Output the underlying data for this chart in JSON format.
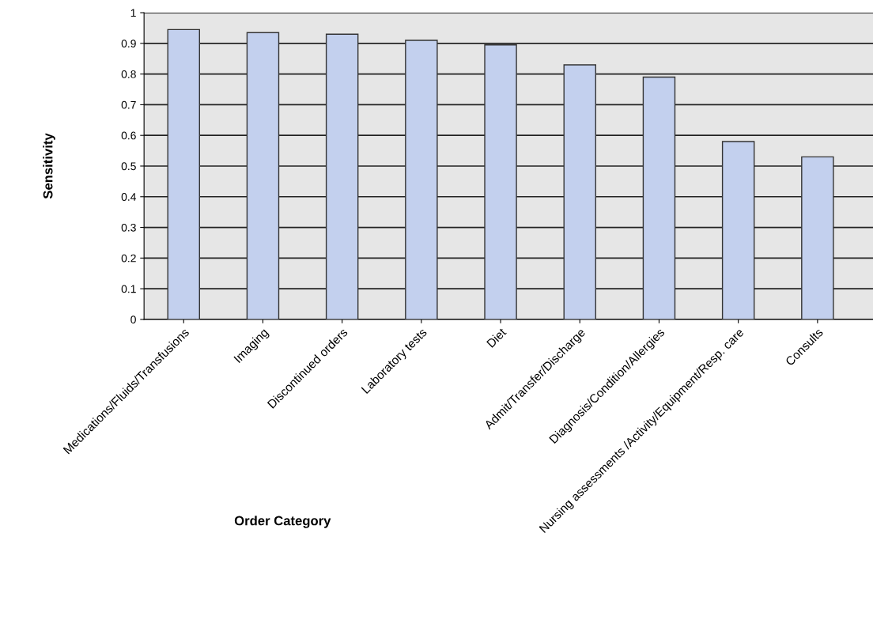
{
  "chart_data": {
    "type": "bar",
    "xlabel": "Order Category",
    "ylabel": "Sensitivity",
    "categories": [
      "Medications/Fluids/Transfusions",
      "Imaging",
      "Discontinued orders",
      "Laboratory tests",
      "Diet",
      "Admit/Transfer/Discharge",
      "Diagnosis/Condition/Allergies",
      "Nursing assessments /Activity/Equipment/Resp. care",
      "Consults"
    ],
    "values": [
      0.945,
      0.935,
      0.93,
      0.91,
      0.895,
      0.83,
      0.79,
      0.58,
      0.53
    ],
    "color": "#c3d0ee",
    "ylim": [
      0,
      1
    ],
    "yticks": [
      0,
      0.1,
      0.2,
      0.3,
      0.4,
      0.5,
      0.6,
      0.7,
      0.8,
      0.9,
      1
    ],
    "grid": "y"
  }
}
